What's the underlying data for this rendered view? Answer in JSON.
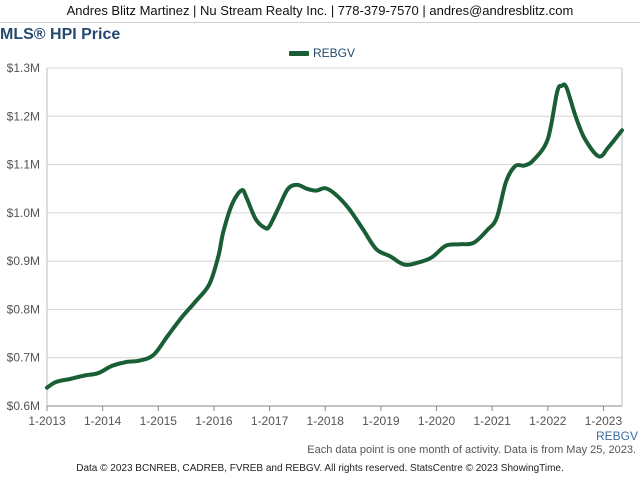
{
  "header": {
    "contact": "Andres Blitz Martinez | Nu Stream Realty Inc. | 778-379-7570 | andres@andresblitz.com"
  },
  "chart_data": {
    "type": "line",
    "title": "MLS® HPI Price",
    "legend": {
      "position": "top-center",
      "entries": [
        "REBGV"
      ]
    },
    "grid": true,
    "xlabel": "",
    "ylabel": "",
    "x_range": [
      "2013-01",
      "2023-05"
    ],
    "ylim": [
      600000,
      1300000
    ],
    "y_ticks": [
      {
        "value": 600000,
        "label": "$0.6M"
      },
      {
        "value": 700000,
        "label": "$0.7M"
      },
      {
        "value": 800000,
        "label": "$0.8M"
      },
      {
        "value": 900000,
        "label": "$0.9M"
      },
      {
        "value": 1000000,
        "label": "$1.0M"
      },
      {
        "value": 1100000,
        "label": "$1.1M"
      },
      {
        "value": 1200000,
        "label": "$1.2M"
      },
      {
        "value": 1300000,
        "label": "$1.3M"
      }
    ],
    "x_ticks": [
      {
        "value": "2013-01",
        "label": "1-2013"
      },
      {
        "value": "2014-01",
        "label": "1-2014"
      },
      {
        "value": "2015-01",
        "label": "1-2015"
      },
      {
        "value": "2016-01",
        "label": "1-2016"
      },
      {
        "value": "2017-01",
        "label": "1-2017"
      },
      {
        "value": "2018-01",
        "label": "1-2018"
      },
      {
        "value": "2019-01",
        "label": "1-2019"
      },
      {
        "value": "2020-01",
        "label": "1-2020"
      },
      {
        "value": "2021-01",
        "label": "1-2021"
      },
      {
        "value": "2022-01",
        "label": "1-2022"
      },
      {
        "value": "2023-01",
        "label": "1-2023"
      }
    ],
    "series": [
      {
        "name": "REBGV",
        "color": "#1a5e35",
        "points": [
          [
            "2013-01",
            638000
          ],
          [
            "2013-03",
            650000
          ],
          [
            "2013-06",
            656000
          ],
          [
            "2013-09",
            663000
          ],
          [
            "2013-12",
            668000
          ],
          [
            "2014-03",
            683000
          ],
          [
            "2014-06",
            691000
          ],
          [
            "2014-09",
            694000
          ],
          [
            "2014-12",
            706000
          ],
          [
            "2015-03",
            745000
          ],
          [
            "2015-06",
            783000
          ],
          [
            "2015-09",
            816000
          ],
          [
            "2015-12",
            852000
          ],
          [
            "2016-02",
            912000
          ],
          [
            "2016-03",
            960000
          ],
          [
            "2016-05",
            1020000
          ],
          [
            "2016-07",
            1047000
          ],
          [
            "2016-08",
            1032000
          ],
          [
            "2016-10",
            987000
          ],
          [
            "2016-12",
            969000
          ],
          [
            "2017-01",
            973000
          ],
          [
            "2017-03",
            1012000
          ],
          [
            "2017-05",
            1050000
          ],
          [
            "2017-07",
            1058000
          ],
          [
            "2017-09",
            1050000
          ],
          [
            "2017-11",
            1046000
          ],
          [
            "2018-01",
            1051000
          ],
          [
            "2018-03",
            1040000
          ],
          [
            "2018-06",
            1010000
          ],
          [
            "2018-09",
            968000
          ],
          [
            "2018-12",
            925000
          ],
          [
            "2019-03",
            910000
          ],
          [
            "2019-06",
            893000
          ],
          [
            "2019-09",
            897000
          ],
          [
            "2019-12",
            908000
          ],
          [
            "2020-03",
            932000
          ],
          [
            "2020-06",
            935000
          ],
          [
            "2020-09",
            938000
          ],
          [
            "2020-12",
            965000
          ],
          [
            "2021-02",
            990000
          ],
          [
            "2021-04",
            1065000
          ],
          [
            "2021-06",
            1097000
          ],
          [
            "2021-08",
            1098000
          ],
          [
            "2021-10",
            1110000
          ],
          [
            "2022-01",
            1153000
          ],
          [
            "2022-03",
            1250000
          ],
          [
            "2022-04",
            1263000
          ],
          [
            "2022-05",
            1260000
          ],
          [
            "2022-07",
            1200000
          ],
          [
            "2022-09",
            1153000
          ],
          [
            "2022-12",
            1117000
          ],
          [
            "2023-02",
            1135000
          ],
          [
            "2023-05",
            1171000
          ]
        ]
      }
    ]
  },
  "footer": {
    "series_tag": "REBGV",
    "note": "Each data point is one month of activity. Data is from May 25, 2023.",
    "copyright": "Data © 2023 BCNREB, CADREB, FVREB and REBGV. All rights reserved. StatsCentre © 2023 ShowingTime."
  }
}
